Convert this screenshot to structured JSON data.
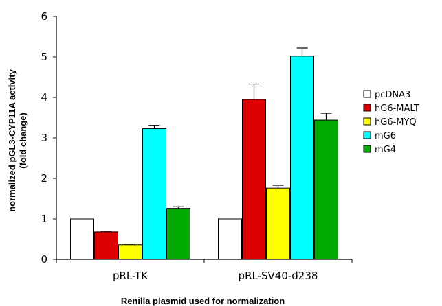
{
  "chart_data": {
    "type": "bar",
    "categories": [
      "pRL-TK",
      "pRL-SV40-d238"
    ],
    "series": [
      {
        "name": "pcDNA3",
        "color": "#ffffff",
        "values": [
          1.0,
          1.0
        ],
        "errors": [
          0,
          0
        ]
      },
      {
        "name": "hG6-MALT",
        "color": "#dd0000",
        "values": [
          0.68,
          3.95
        ],
        "errors": [
          0.02,
          0.38
        ]
      },
      {
        "name": "hG6-MYQ",
        "color": "#ffff00",
        "values": [
          0.36,
          1.76
        ],
        "errors": [
          0.02,
          0.07
        ]
      },
      {
        "name": "mG6",
        "color": "#00ffff",
        "values": [
          3.23,
          5.02
        ],
        "errors": [
          0.08,
          0.2
        ]
      },
      {
        "name": "mG4",
        "color": "#00aa00",
        "values": [
          1.26,
          3.44
        ],
        "errors": [
          0.04,
          0.17
        ]
      }
    ],
    "title": "",
    "xlabel": "Renilla plasmid used for normalization",
    "ylabel_line1": "normalized pGL3-CYP11A activity",
    "ylabel_line2": "(fold change)",
    "ylim": [
      0,
      6
    ],
    "yticks": [
      0,
      1,
      2,
      3,
      4,
      5,
      6
    ],
    "grid": false,
    "legend_position": "right"
  }
}
